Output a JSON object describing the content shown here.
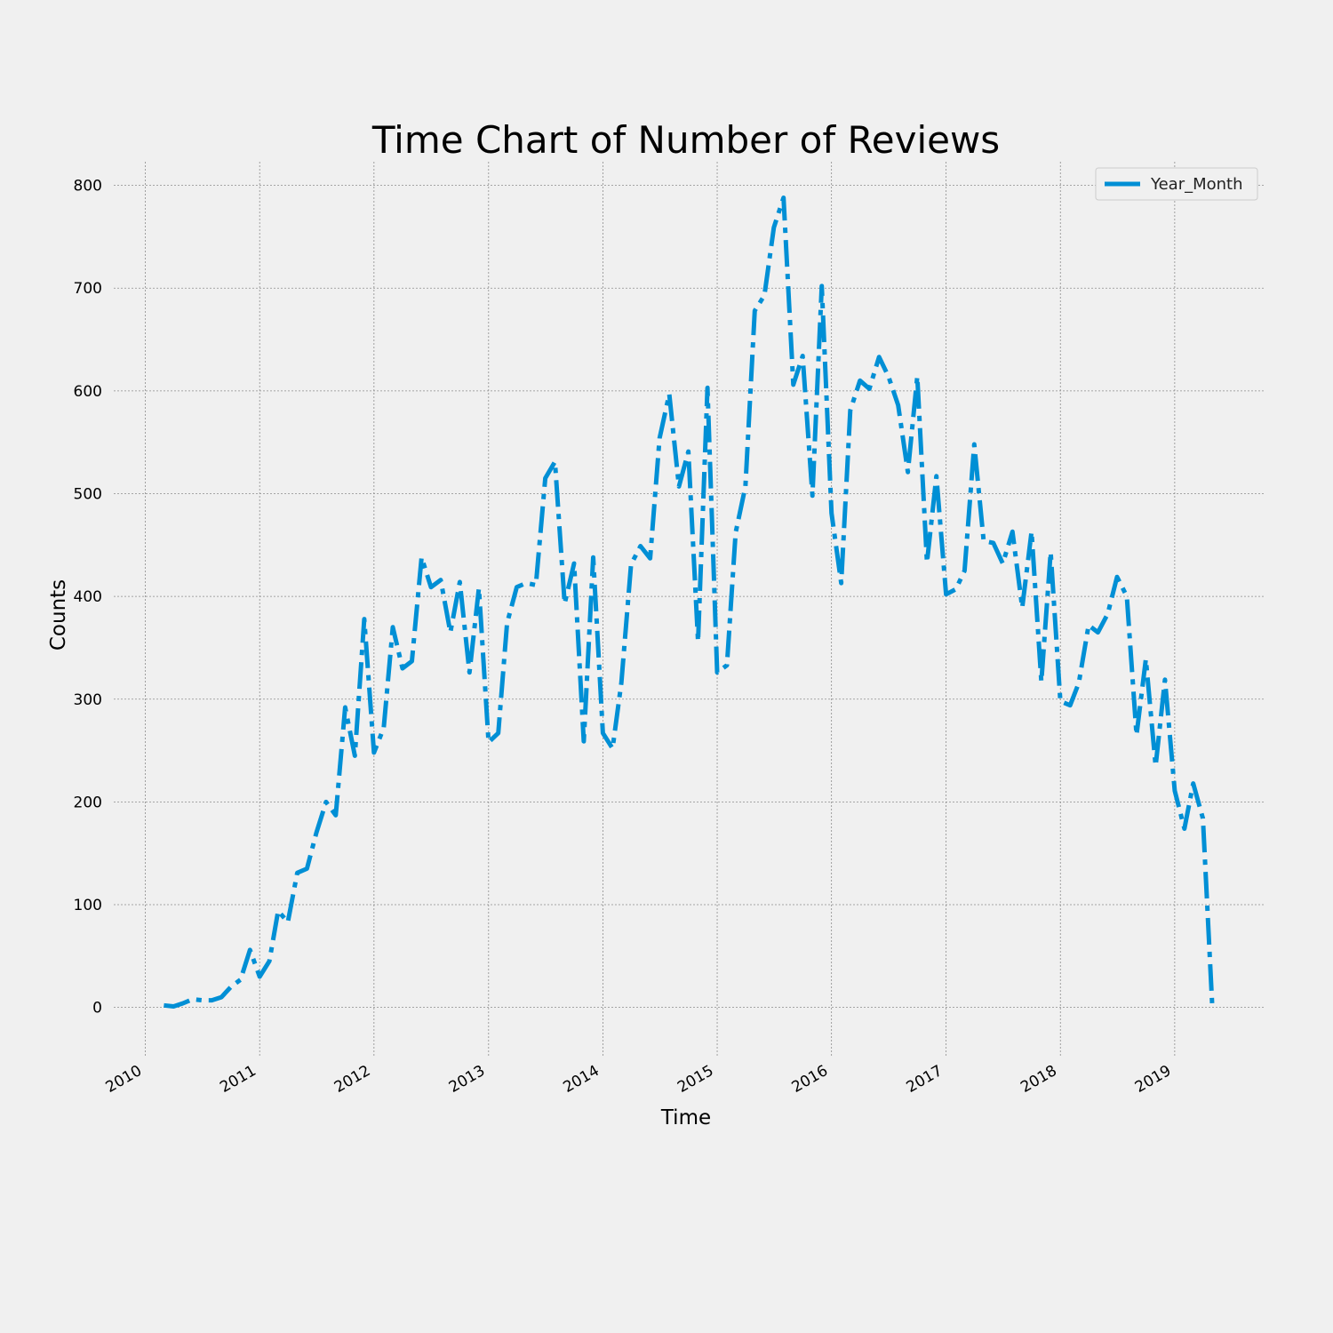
{
  "chart_data": {
    "type": "line",
    "title": "Time Chart of Number of Reviews",
    "xlabel": "Time",
    "ylabel": "Counts",
    "x_ticks": [
      "2010",
      "2011",
      "2012",
      "2013",
      "2014",
      "2015",
      "2016",
      "2017",
      "2018",
      "2019"
    ],
    "y_ticks": [
      0,
      100,
      200,
      300,
      400,
      500,
      600,
      700,
      800
    ],
    "xlim": [
      "2009-09-22",
      "2019-10-15"
    ],
    "ylim": [
      -47,
      823
    ],
    "grid": true,
    "legend_position": "top-right",
    "line_style": "dash-dot",
    "color": "#008fd5",
    "series": [
      {
        "name": "Year_Month",
        "x": [
          "2010-03",
          "2010-04",
          "2010-05",
          "2010-06",
          "2010-07",
          "2010-08",
          "2010-09",
          "2010-10",
          "2010-11",
          "2010-12",
          "2011-01",
          "2011-02",
          "2011-03",
          "2011-04",
          "2011-05",
          "2011-06",
          "2011-07",
          "2011-08",
          "2011-09",
          "2011-10",
          "2011-11",
          "2011-12",
          "2012-01",
          "2012-02",
          "2012-03",
          "2012-04",
          "2012-05",
          "2012-06",
          "2012-07",
          "2012-08",
          "2012-09",
          "2012-10",
          "2012-11",
          "2012-12",
          "2013-01",
          "2013-02",
          "2013-03",
          "2013-04",
          "2013-05",
          "2013-06",
          "2013-07",
          "2013-08",
          "2013-09",
          "2013-10",
          "2013-11",
          "2013-12",
          "2014-01",
          "2014-02",
          "2014-03",
          "2014-04",
          "2014-05",
          "2014-06",
          "2014-07",
          "2014-08",
          "2014-09",
          "2014-10",
          "2014-11",
          "2014-12",
          "2015-01",
          "2015-02",
          "2015-03",
          "2015-04",
          "2015-05",
          "2015-06",
          "2015-07",
          "2015-08",
          "2015-09",
          "2015-10",
          "2015-11",
          "2015-12",
          "2016-01",
          "2016-02",
          "2016-03",
          "2016-04",
          "2016-05",
          "2016-06",
          "2016-07",
          "2016-08",
          "2016-09",
          "2016-10",
          "2016-11",
          "2016-12",
          "2017-01",
          "2017-02",
          "2017-03",
          "2017-04",
          "2017-05",
          "2017-06",
          "2017-07",
          "2017-08",
          "2017-09",
          "2017-10",
          "2017-11",
          "2017-12",
          "2018-01",
          "2018-02",
          "2018-03",
          "2018-04",
          "2018-05",
          "2018-06",
          "2018-07",
          "2018-08",
          "2018-09",
          "2018-10",
          "2018-11",
          "2018-12",
          "2019-01",
          "2019-02",
          "2019-03",
          "2019-04",
          "2019-05"
        ],
        "values": [
          2,
          1,
          4,
          8,
          7,
          7,
          10,
          20,
          27,
          56,
          30,
          45,
          94,
          83,
          131,
          135,
          170,
          200,
          187,
          292,
          245,
          378,
          248,
          272,
          370,
          330,
          337,
          438,
          409,
          416,
          365,
          414,
          326,
          408,
          258,
          267,
          374,
          409,
          413,
          411,
          515,
          531,
          393,
          432,
          259,
          438,
          267,
          252,
          316,
          431,
          449,
          437,
          554,
          597,
          507,
          541,
          356,
          603,
          326,
          333,
          462,
          507,
          678,
          693,
          759,
          788,
          606,
          634,
          498,
          702,
          481,
          413,
          581,
          610,
          602,
          633,
          614,
          586,
          521,
          614,
          433,
          517,
          402,
          407,
          425,
          548,
          454,
          452,
          432,
          463,
          389,
          463,
          317,
          443,
          298,
          294,
          316,
          372,
          365,
          383,
          419,
          400,
          265,
          339,
          235,
          319,
          211,
          174,
          218,
          184,
          0
        ]
      }
    ]
  }
}
